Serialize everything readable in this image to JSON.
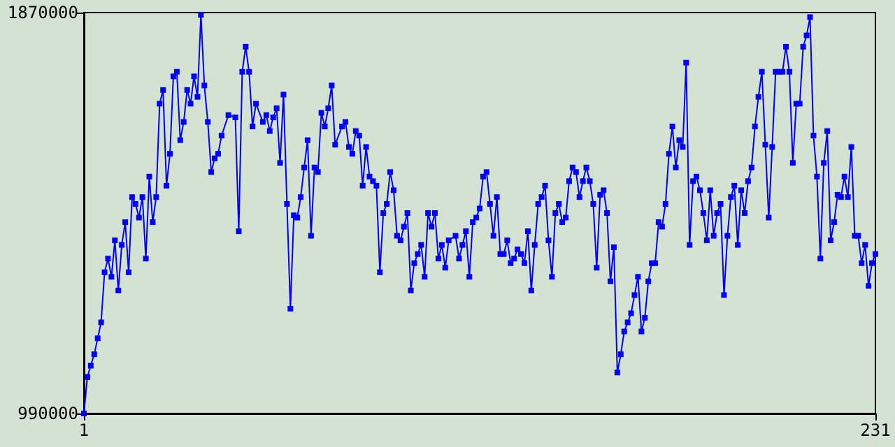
{
  "chart_data": {
    "type": "line",
    "x": [
      1,
      2,
      3,
      4,
      5,
      6,
      7,
      8,
      9,
      10,
      11,
      12,
      13,
      14,
      15,
      16,
      17,
      18,
      19,
      20,
      21,
      22,
      23,
      24,
      25,
      26,
      27,
      28,
      29,
      30,
      31,
      32,
      33,
      34,
      35,
      36,
      37,
      38,
      39,
      40,
      41,
      43,
      45,
      46,
      47,
      48,
      49,
      50,
      51,
      53,
      54,
      55,
      56,
      57,
      58,
      59,
      60,
      61,
      62,
      63,
      64,
      65,
      66,
      67,
      68,
      69,
      70,
      71,
      72,
      73,
      74,
      76,
      77,
      78,
      79,
      80,
      81,
      82,
      83,
      84,
      85,
      86,
      87,
      88,
      89,
      90,
      91,
      92,
      93,
      94,
      95,
      96,
      97,
      98,
      99,
      100,
      101,
      102,
      103,
      104,
      105,
      106,
      107,
      109,
      110,
      111,
      112,
      113,
      114,
      115,
      116,
      117,
      118,
      119,
      120,
      121,
      122,
      123,
      124,
      125,
      126,
      127,
      128,
      129,
      130,
      131,
      132,
      133,
      134,
      135,
      136,
      137,
      138,
      139,
      140,
      141,
      142,
      143,
      144,
      145,
      146,
      147,
      148,
      149,
      150,
      151,
      152,
      153,
      154,
      155,
      156,
      157,
      158,
      159,
      160,
      161,
      162,
      163,
      164,
      165,
      166,
      167,
      168,
      169,
      170,
      171,
      172,
      173,
      174,
      175,
      176,
      177,
      178,
      179,
      180,
      181,
      182,
      183,
      184,
      185,
      186,
      187,
      188,
      189,
      190,
      191,
      192,
      193,
      194,
      195,
      196,
      197,
      198,
      199,
      200,
      201,
      202,
      203,
      204,
      205,
      206,
      207,
      208,
      209,
      210,
      211,
      212,
      213,
      214,
      215,
      216,
      217,
      218,
      219,
      220,
      221,
      222,
      223,
      224,
      225,
      226,
      227,
      228,
      229,
      230,
      231
    ],
    "values": [
      990000,
      1070000,
      1095000,
      1120000,
      1155000,
      1190000,
      1300000,
      1330000,
      1290000,
      1370000,
      1260000,
      1360000,
      1410000,
      1300000,
      1465000,
      1450000,
      1420000,
      1465000,
      1330000,
      1510000,
      1410000,
      1465000,
      1670000,
      1700000,
      1490000,
      1560000,
      1730000,
      1740000,
      1590000,
      1630000,
      1700000,
      1670000,
      1730000,
      1685000,
      1865000,
      1710000,
      1630000,
      1520000,
      1550000,
      1560000,
      1600000,
      1645000,
      1640000,
      1390000,
      1740000,
      1795000,
      1740000,
      1620000,
      1670000,
      1630000,
      1645000,
      1610000,
      1640000,
      1660000,
      1540000,
      1690000,
      1450000,
      1220000,
      1425000,
      1420000,
      1465000,
      1530000,
      1590000,
      1380000,
      1530000,
      1520000,
      1650000,
      1620000,
      1660000,
      1710000,
      1580000,
      1620000,
      1630000,
      1575000,
      1560000,
      1610000,
      1600000,
      1490000,
      1575000,
      1510000,
      1500000,
      1490000,
      1300000,
      1430000,
      1450000,
      1520000,
      1480000,
      1380000,
      1370000,
      1400000,
      1430000,
      1260000,
      1320000,
      1340000,
      1360000,
      1290000,
      1430000,
      1400000,
      1430000,
      1330000,
      1360000,
      1310000,
      1370000,
      1380000,
      1330000,
      1360000,
      1390000,
      1290000,
      1410000,
      1420000,
      1440000,
      1510000,
      1520000,
      1450000,
      1380000,
      1465000,
      1340000,
      1340000,
      1370000,
      1320000,
      1330000,
      1350000,
      1340000,
      1320000,
      1390000,
      1260000,
      1360000,
      1450000,
      1465000,
      1490000,
      1370000,
      1290000,
      1430000,
      1450000,
      1410000,
      1420000,
      1500000,
      1530000,
      1520000,
      1465000,
      1500000,
      1530000,
      1500000,
      1450000,
      1310000,
      1470000,
      1480000,
      1430000,
      1280000,
      1355000,
      1080000,
      1120000,
      1170000,
      1190000,
      1210000,
      1250000,
      1290000,
      1170000,
      1200000,
      1280000,
      1320000,
      1320000,
      1410000,
      1400000,
      1450000,
      1560000,
      1620000,
      1530000,
      1590000,
      1575000,
      1760000,
      1360000,
      1500000,
      1510000,
      1480000,
      1430000,
      1370000,
      1480000,
      1380000,
      1430000,
      1450000,
      1250000,
      1380000,
      1465000,
      1490000,
      1360000,
      1480000,
      1430000,
      1500000,
      1530000,
      1620000,
      1685000,
      1740000,
      1580000,
      1420000,
      1575000,
      1740000,
      1740000,
      1740000,
      1795000,
      1740000,
      1540000,
      1670000,
      1670000,
      1795000,
      1820000,
      1860000,
      1600000,
      1510000,
      1330000,
      1540000,
      1610000,
      1370000,
      1410000,
      1470000,
      1465000,
      1510000,
      1465000,
      1575000,
      1380000,
      1380000,
      1320000,
      1360000,
      1270000,
      1320000,
      1340000
    ],
    "color": "#0000ff",
    "marker": "square",
    "line_style": "solid",
    "grid": false,
    "xlim": [
      1,
      231
    ],
    "xticks": [
      1,
      231
    ],
    "ylim": [
      990000,
      1870000
    ],
    "yticks": [
      990000,
      1870000
    ]
  }
}
